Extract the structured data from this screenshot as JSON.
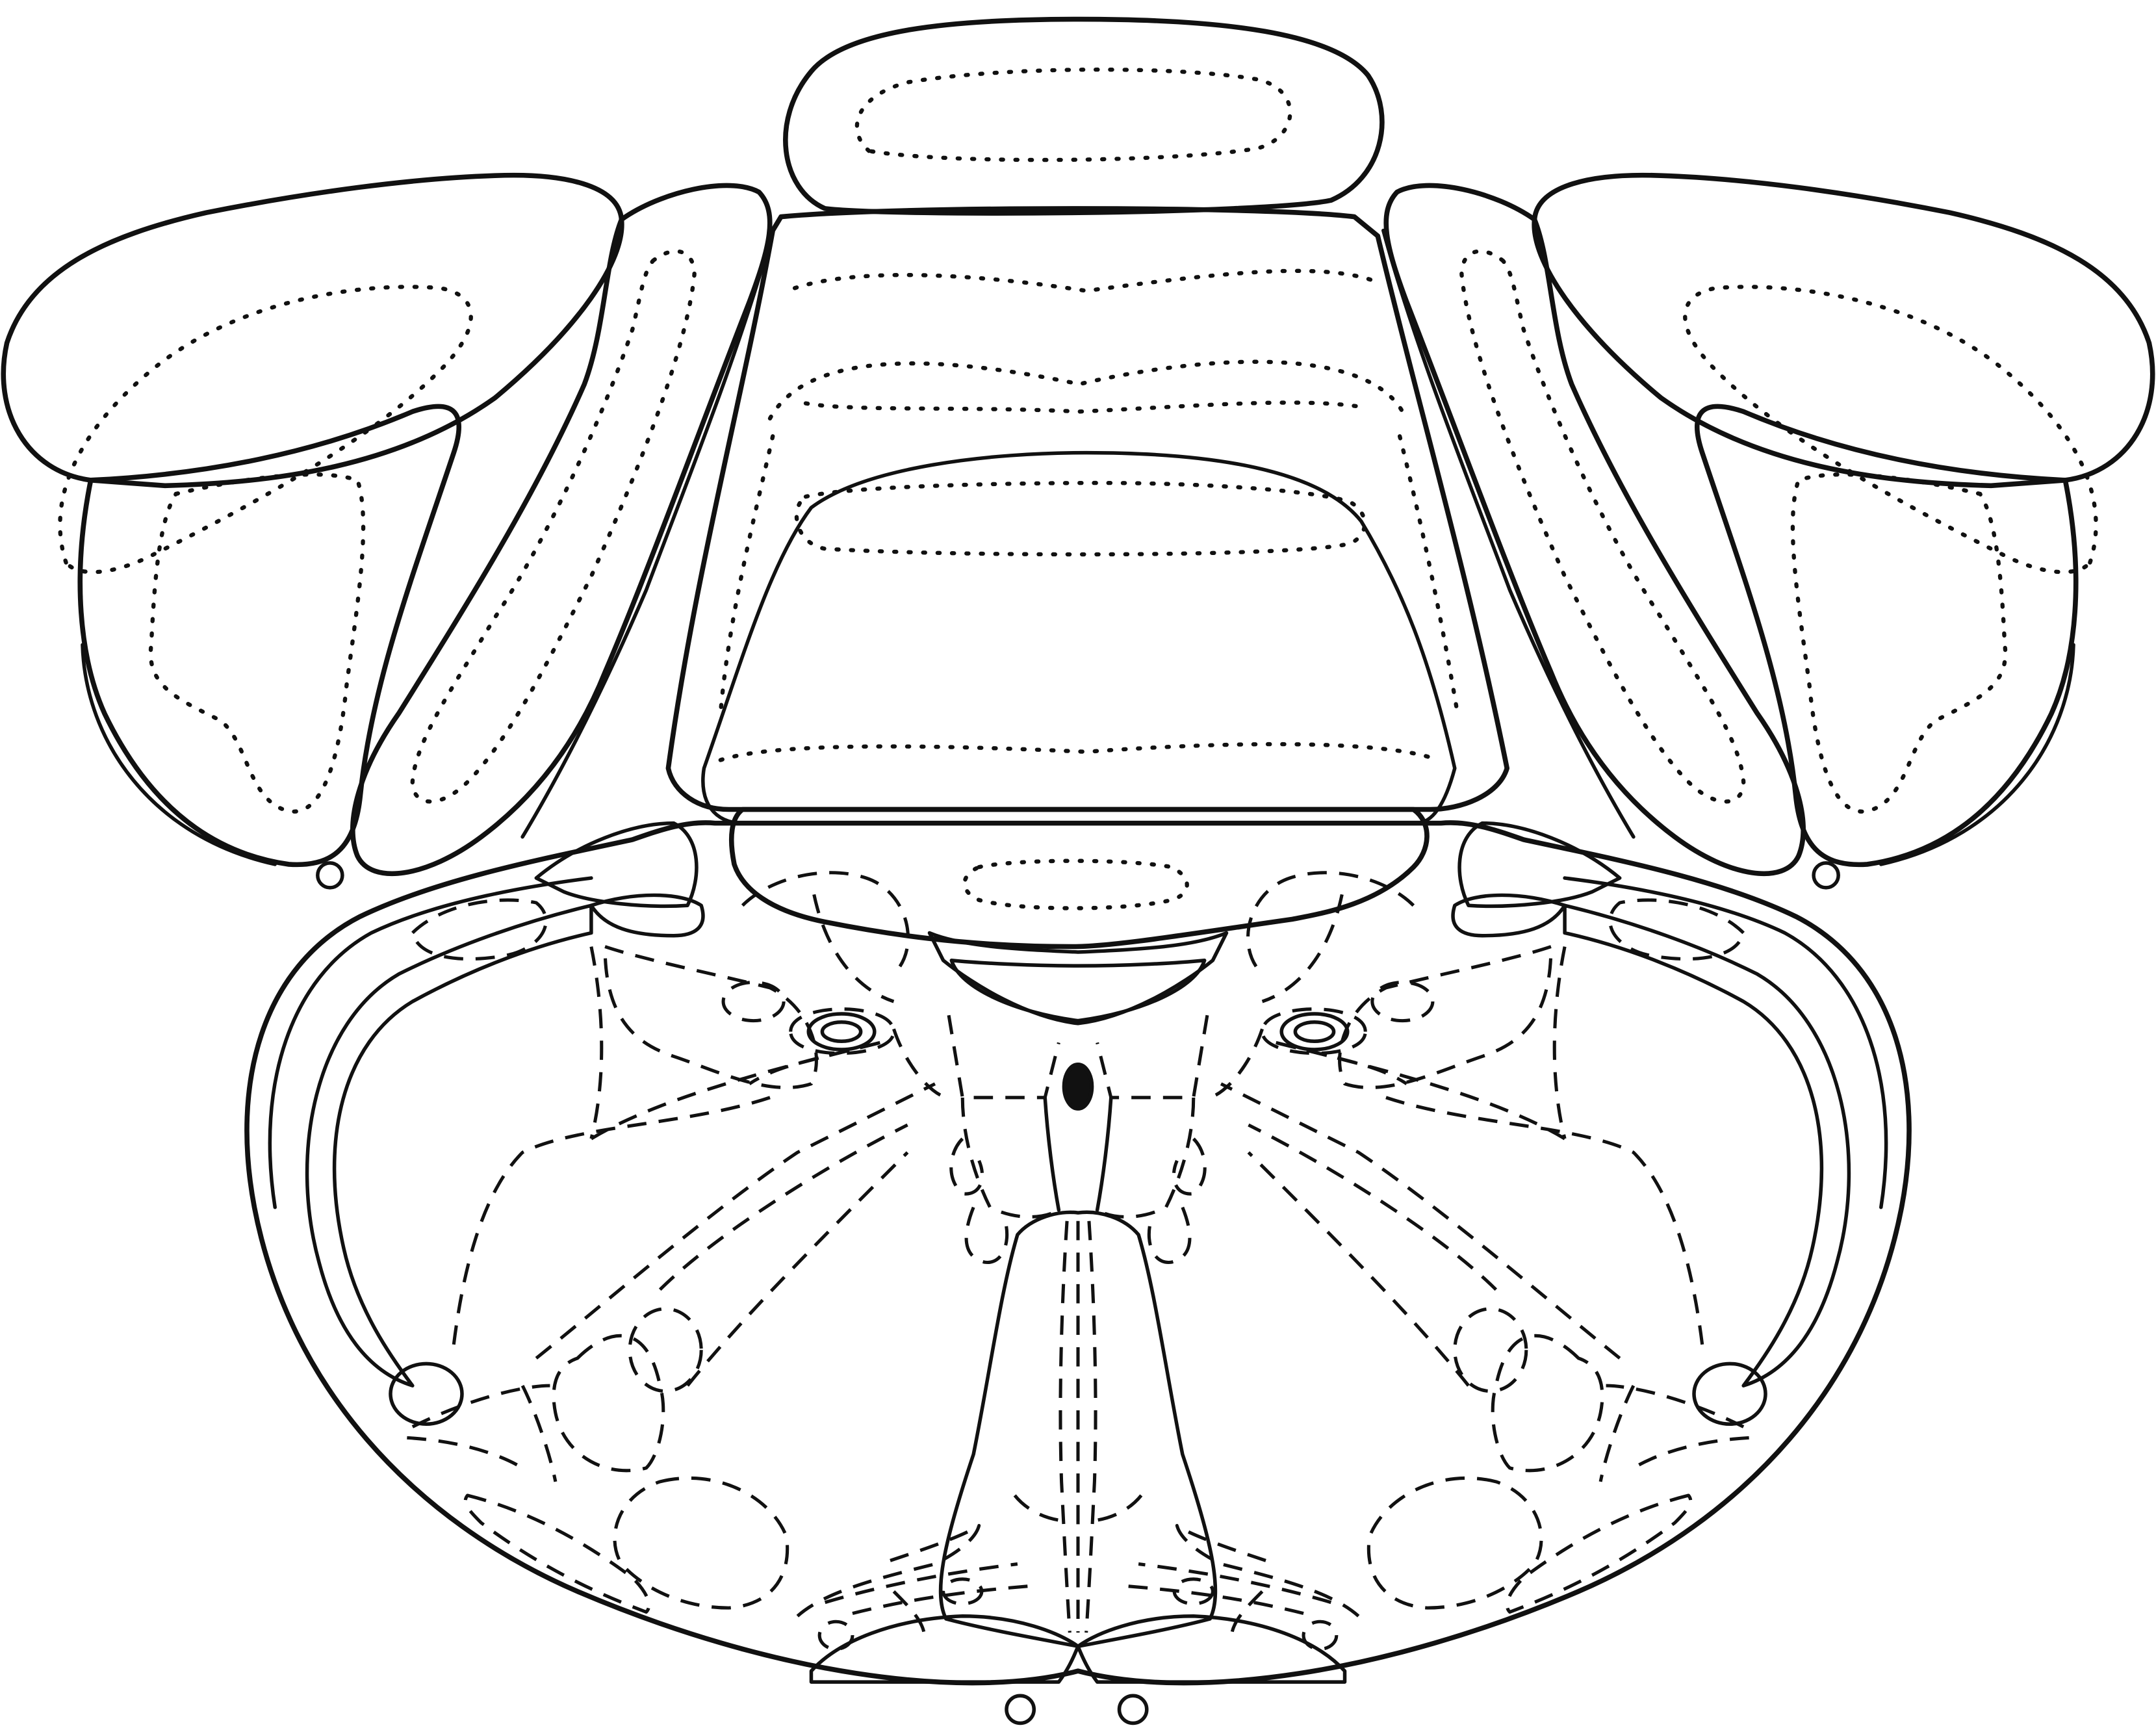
{
  "colors": {
    "background": "#ffffff",
    "outline": "#111111",
    "canal_fill": "#111111"
  }
}
